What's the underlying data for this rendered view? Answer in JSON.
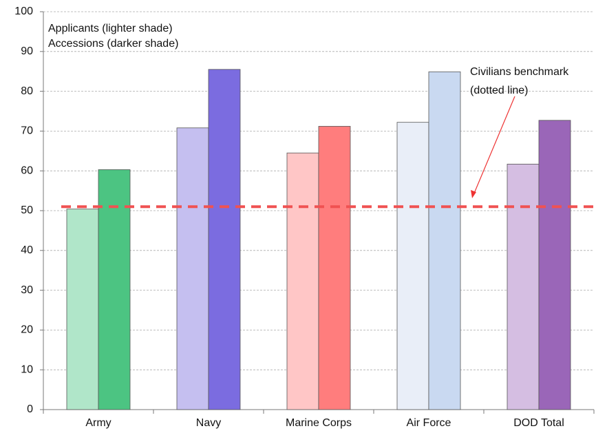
{
  "chart_data": {
    "type": "bar",
    "categories": [
      "Army",
      "Navy",
      "Marine Corps",
      "Air Force",
      "DOD Total"
    ],
    "series": [
      {
        "name": "Applicants (lighter shade)",
        "colors": [
          "#b0e6c9",
          "#c5bff0",
          "#ffc6c6",
          "#e9eef8",
          "#d5bee2"
        ],
        "values": [
          50.4,
          70.8,
          64.5,
          72.2,
          61.7
        ]
      },
      {
        "name": "Accessions (darker shade)",
        "colors": [
          "#4cc482",
          "#7b6ce0",
          "#ff7d7d",
          "#c9d9f1",
          "#9a66b8"
        ],
        "values": [
          60.3,
          85.5,
          71.2,
          84.9,
          72.7
        ]
      }
    ],
    "ylim": [
      0,
      100
    ],
    "yticks": [
      0,
      10,
      20,
      30,
      40,
      50,
      60,
      70,
      80,
      90,
      100
    ],
    "grid": true,
    "benchmark": {
      "value": 51,
      "color": "#f05252"
    },
    "annotation": [
      "Civilians benchmark",
      "(dotted line)"
    ]
  }
}
